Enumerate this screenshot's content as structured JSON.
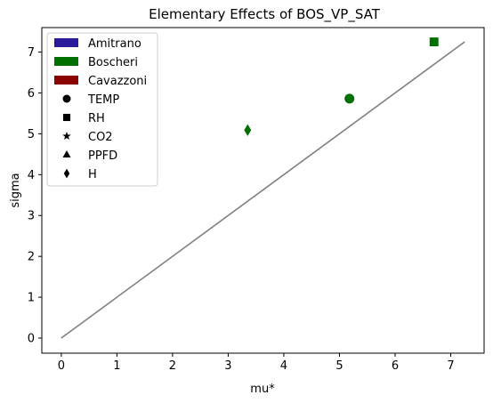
{
  "chart_data": {
    "type": "scatter",
    "title": "Elementary Effects of BOS_VP_SAT",
    "xlabel": "mu*",
    "ylabel": "sigma",
    "xlim": [
      -0.35,
      7.6
    ],
    "ylim": [
      -0.37,
      7.6
    ],
    "xticks": [
      0,
      1,
      2,
      3,
      4,
      5,
      6,
      7
    ],
    "yticks": [
      0,
      1,
      2,
      3,
      4,
      5,
      6,
      7
    ],
    "grid": false,
    "legend_position": "upper-left",
    "reference_line": {
      "x": [
        0,
        7.25
      ],
      "y": [
        0,
        7.25
      ],
      "color": "#808080"
    },
    "legend": {
      "models": [
        {
          "label": "Amitrano",
          "color": "#2a1b9a"
        },
        {
          "label": "Boscheri",
          "color": "#007000"
        },
        {
          "label": "Cavazzoni",
          "color": "#8b0000"
        }
      ],
      "variables": [
        {
          "label": "TEMP",
          "marker": "circle"
        },
        {
          "label": "RH",
          "marker": "square"
        },
        {
          "label": "CO2",
          "marker": "star"
        },
        {
          "label": "PPFD",
          "marker": "triangle"
        },
        {
          "label": "H",
          "marker": "diamond"
        }
      ]
    },
    "points": [
      {
        "model": "Boscheri",
        "variable": "TEMP",
        "marker": "circle",
        "x": 5.18,
        "y": 5.86,
        "color": "#007000"
      },
      {
        "model": "Boscheri",
        "variable": "RH",
        "marker": "square",
        "x": 6.7,
        "y": 7.25,
        "color": "#007000"
      },
      {
        "model": "Boscheri",
        "variable": "H",
        "marker": "diamond",
        "x": 3.35,
        "y": 5.09,
        "color": "#007000"
      }
    ]
  }
}
